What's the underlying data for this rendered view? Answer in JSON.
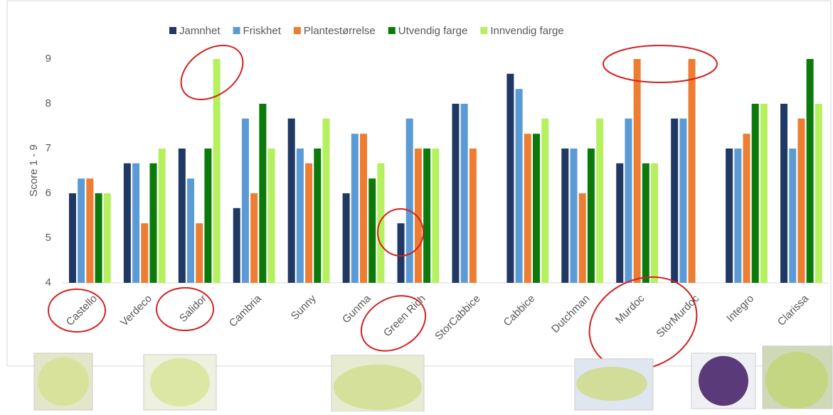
{
  "chart_data": {
    "type": "bar",
    "y_label": "Score 1 - 9",
    "categories": [
      "Castello",
      "Verdeco",
      "Salidor",
      "Cambria",
      "Sunny",
      "Gunma",
      "Green Rich",
      "StorCabbice",
      "Cabbice",
      "Dutchman",
      "Murdoc",
      "StorMurdoc",
      "Integro",
      "Clarissa"
    ],
    "series": [
      {
        "name": "Jamnhet",
        "color": "#203864",
        "values": [
          6,
          6.67,
          7,
          5.67,
          7.67,
          6,
          5.33,
          8,
          8.67,
          7,
          6.67,
          7.67,
          7,
          8
        ]
      },
      {
        "name": "Friskhet",
        "color": "#5b9bd5",
        "values": [
          6.33,
          6.67,
          6.33,
          7.67,
          7,
          7.33,
          7.67,
          8,
          8.33,
          7,
          7.67,
          7.67,
          7,
          7
        ]
      },
      {
        "name": "Plantestørrelse",
        "color": "#ed7d31",
        "values": [
          6.33,
          5.33,
          5.33,
          6,
          6.67,
          7.33,
          7,
          7,
          7.33,
          6,
          9,
          9,
          7.33,
          7.67
        ]
      },
      {
        "name": "Utvendig farge",
        "color": "#0b7a0b",
        "values": [
          6,
          6.67,
          7,
          8,
          7,
          6.33,
          7,
          null,
          7.33,
          7,
          6.67,
          null,
          8,
          9
        ]
      },
      {
        "name": "Innvendig farge",
        "color": "#b5f05f",
        "values": [
          6,
          7,
          9,
          7,
          7.67,
          6.67,
          7,
          null,
          7.67,
          7.67,
          6.67,
          null,
          8,
          8
        ]
      }
    ],
    "ylim": [
      4,
      9
    ],
    "yticks": [
      4,
      5,
      6,
      7,
      8,
      9
    ],
    "grid": false
  }
}
